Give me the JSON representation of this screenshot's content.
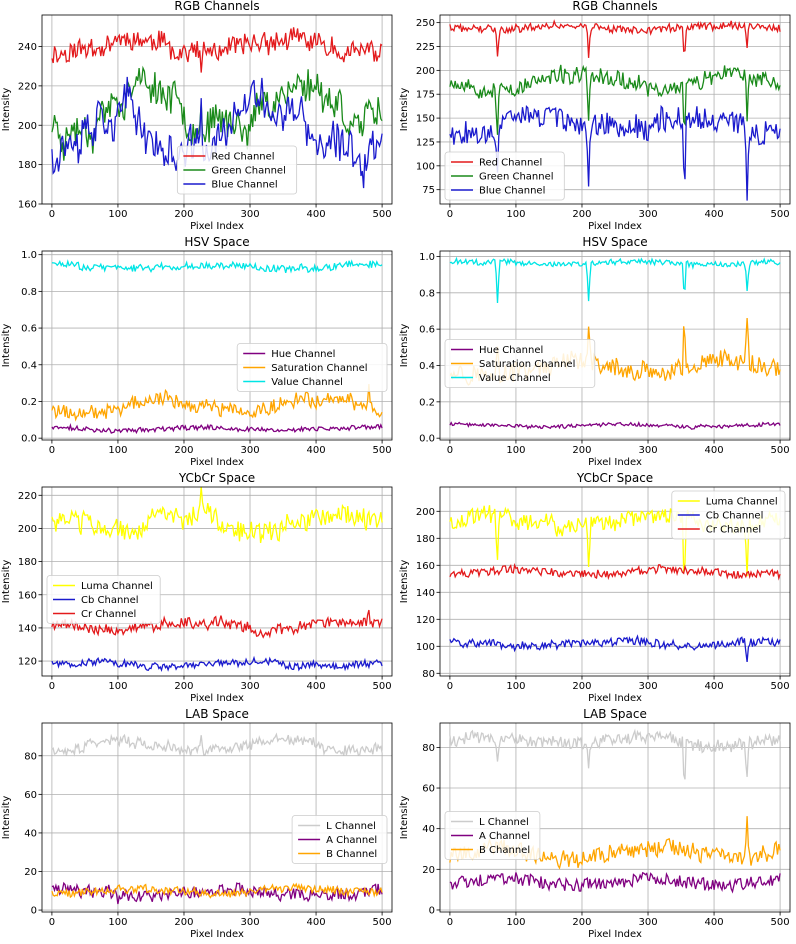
{
  "chart_data": [
    {
      "type": "line",
      "title": "RGB Channels",
      "xlabel": "Pixel Index",
      "ylabel": "Intensity",
      "xlim": [
        -15,
        515
      ],
      "ylim": [
        160,
        256
      ],
      "xticks": [
        0,
        100,
        200,
        300,
        400,
        500
      ],
      "yticks": [
        160,
        180,
        200,
        220,
        240
      ],
      "legend_position": "lower-center",
      "series": [
        {
          "name": "Red Channel",
          "color": "#e31a1c",
          "base": 240,
          "amp": 4,
          "noise": 5,
          "seed": 11,
          "spikes": [
            [
              226,
              -10
            ]
          ]
        },
        {
          "name": "Green Channel",
          "color": "#1a8a1a",
          "base": 210,
          "amp": 14,
          "noise": 7,
          "seed": 23,
          "spikes": [
            [
              226,
              18
            ]
          ]
        },
        {
          "name": "Blue Channel",
          "color": "#1a1acd",
          "base": 197,
          "amp": 17,
          "noise": 8,
          "seed": 37,
          "spikes": [
            [
              226,
              25
            ]
          ]
        }
      ]
    },
    {
      "type": "line",
      "title": "RGB Channels",
      "xlabel": "Pixel Index",
      "ylabel": "Intensity",
      "xlim": [
        -15,
        515
      ],
      "ylim": [
        60,
        258
      ],
      "xticks": [
        0,
        100,
        200,
        300,
        400,
        500
      ],
      "yticks": [
        75,
        100,
        125,
        150,
        175,
        200,
        225,
        250
      ],
      "legend_position": "lower-left",
      "series": [
        {
          "name": "Red Channel",
          "color": "#e31a1c",
          "base": 245,
          "amp": 3,
          "noise": 4,
          "seed": 41,
          "spikes": [
            [
              72,
              -30
            ],
            [
              210,
              -30
            ],
            [
              355,
              -35
            ],
            [
              450,
              -20
            ]
          ]
        },
        {
          "name": "Green Channel",
          "color": "#1a8a1a",
          "base": 188,
          "amp": 8,
          "noise": 8,
          "seed": 53,
          "spikes": [
            [
              72,
              -50
            ],
            [
              210,
              -55
            ],
            [
              355,
              -60
            ],
            [
              450,
              -45
            ]
          ]
        },
        {
          "name": "Blue Channel",
          "color": "#1a1acd",
          "base": 145,
          "amp": 10,
          "noise": 12,
          "seed": 67,
          "spikes": [
            [
              72,
              -60
            ],
            [
              210,
              -65
            ],
            [
              355,
              -80
            ],
            [
              450,
              -75
            ]
          ]
        }
      ]
    },
    {
      "type": "line",
      "title": "HSV Space",
      "xlabel": "Pixel Index",
      "ylabel": "Intensity",
      "xlim": [
        -15,
        515
      ],
      "ylim": [
        -0.01,
        1.02
      ],
      "xticks": [
        0,
        100,
        200,
        300,
        400,
        500
      ],
      "yticks": [
        0.0,
        0.2,
        0.4,
        0.6,
        0.8,
        1.0
      ],
      "legend_position": "center-right",
      "series": [
        {
          "name": "Hue Channel",
          "color": "#800080",
          "base": 0.05,
          "amp": 0.01,
          "noise": 0.012,
          "seed": 71,
          "spikes": []
        },
        {
          "name": "Saturation Channel",
          "color": "#ffa500",
          "base": 0.18,
          "amp": 0.05,
          "noise": 0.035,
          "seed": 79,
          "spikes": [
            [
              480,
              0.1
            ]
          ]
        },
        {
          "name": "Value Channel",
          "color": "#00e5e5",
          "base": 0.935,
          "amp": 0.015,
          "noise": 0.018,
          "seed": 83,
          "spikes": []
        }
      ]
    },
    {
      "type": "line",
      "title": "HSV Space",
      "xlabel": "Pixel Index",
      "ylabel": "Intensity",
      "xlim": [
        -15,
        515
      ],
      "ylim": [
        -0.01,
        1.03
      ],
      "xticks": [
        0,
        100,
        200,
        300,
        400,
        500
      ],
      "yticks": [
        0.0,
        0.2,
        0.4,
        0.6,
        0.8,
        1.0
      ],
      "legend_position": "center-left",
      "series": [
        {
          "name": "Hue Channel",
          "color": "#800080",
          "base": 0.07,
          "amp": 0.008,
          "noise": 0.01,
          "seed": 89,
          "spikes": []
        },
        {
          "name": "Saturation Channel",
          "color": "#ffa500",
          "base": 0.38,
          "amp": 0.04,
          "noise": 0.05,
          "seed": 97,
          "spikes": [
            [
              355,
              0.28
            ],
            [
              450,
              0.28
            ],
            [
              72,
              0.12
            ],
            [
              210,
              0.15
            ]
          ]
        },
        {
          "name": "Value Channel",
          "color": "#00e5e5",
          "base": 0.965,
          "amp": 0.01,
          "noise": 0.015,
          "seed": 101,
          "spikes": [
            [
              72,
              -0.23
            ],
            [
              210,
              -0.2
            ],
            [
              355,
              -0.22
            ],
            [
              450,
              -0.16
            ]
          ]
        }
      ]
    },
    {
      "type": "line",
      "title": "YCbCr Space",
      "xlabel": "Pixel Index",
      "ylabel": "Intensity",
      "xlim": [
        -15,
        515
      ],
      "ylim": [
        111,
        225
      ],
      "xticks": [
        0,
        100,
        200,
        300,
        400,
        500
      ],
      "yticks": [
        120,
        140,
        160,
        180,
        200,
        220
      ],
      "legend_position": "center-left",
      "series": [
        {
          "name": "Luma Channel",
          "color": "#ffff00",
          "base": 203,
          "amp": 7,
          "noise": 6,
          "seed": 103,
          "spikes": [
            [
              226,
              15
            ]
          ]
        },
        {
          "name": "Cb Channel",
          "color": "#1a1acd",
          "base": 118,
          "amp": 2,
          "noise": 2,
          "seed": 107,
          "spikes": []
        },
        {
          "name": "Cr Channel",
          "color": "#e31a1c",
          "base": 141,
          "amp": 3,
          "noise": 3,
          "seed": 109,
          "spikes": [
            [
              480,
              8
            ]
          ]
        }
      ]
    },
    {
      "type": "line",
      "title": "YCbCr Space",
      "xlabel": "Pixel Index",
      "ylabel": "Intensity",
      "xlim": [
        -15,
        515
      ],
      "ylim": [
        78,
        218
      ],
      "xticks": [
        0,
        100,
        200,
        300,
        400,
        500
      ],
      "yticks": [
        80,
        100,
        120,
        140,
        160,
        180,
        200
      ],
      "legend_position": "top-right",
      "series": [
        {
          "name": "Luma Channel",
          "color": "#ffff00",
          "base": 193,
          "amp": 5,
          "noise": 6,
          "seed": 113,
          "spikes": [
            [
              72,
              -30
            ],
            [
              210,
              -35
            ],
            [
              355,
              -55
            ],
            [
              450,
              -40
            ]
          ]
        },
        {
          "name": "Cb Channel",
          "color": "#1a1acd",
          "base": 102,
          "amp": 2,
          "noise": 3,
          "seed": 127,
          "spikes": [
            [
              450,
              -12
            ]
          ]
        },
        {
          "name": "Cr Channel",
          "color": "#e31a1c",
          "base": 155,
          "amp": 2,
          "noise": 3,
          "seed": 131,
          "spikes": []
        }
      ]
    },
    {
      "type": "line",
      "title": "LAB Space",
      "xlabel": "Pixel Index",
      "ylabel": "Intensity",
      "xlim": [
        -15,
        515
      ],
      "ylim": [
        -1,
        97
      ],
      "xticks": [
        0,
        100,
        200,
        300,
        400,
        500
      ],
      "yticks": [
        0,
        20,
        40,
        60,
        80
      ],
      "legend_position": "center-right",
      "series": [
        {
          "name": "L Channel",
          "color": "#cccccc",
          "base": 85,
          "amp": 3,
          "noise": 2.5,
          "seed": 137,
          "spikes": [
            [
              226,
              8
            ]
          ]
        },
        {
          "name": "A Channel",
          "color": "#800080",
          "base": 9,
          "amp": 2,
          "noise": 3,
          "seed": 139,
          "spikes": [
            [
              100,
              -7
            ]
          ]
        },
        {
          "name": "B Channel",
          "color": "#ffa500",
          "base": 10,
          "amp": 1.5,
          "noise": 2,
          "seed": 149,
          "spikes": []
        }
      ]
    },
    {
      "type": "line",
      "title": "LAB Space",
      "xlabel": "Pixel Index",
      "ylabel": "Intensity",
      "xlim": [
        -15,
        515
      ],
      "ylim": [
        -1,
        92
      ],
      "xticks": [
        0,
        100,
        200,
        300,
        400,
        500
      ],
      "yticks": [
        0,
        20,
        40,
        60,
        80
      ],
      "legend_position": "center-left",
      "series": [
        {
          "name": "L Channel",
          "color": "#cccccc",
          "base": 83,
          "amp": 2,
          "noise": 3,
          "seed": 151,
          "spikes": [
            [
              72,
              -12
            ],
            [
              210,
              -14
            ],
            [
              355,
              -22
            ],
            [
              450,
              -18
            ]
          ]
        },
        {
          "name": "A Channel",
          "color": "#800080",
          "base": 14,
          "amp": 2,
          "noise": 3,
          "seed": 157,
          "spikes": []
        },
        {
          "name": "B Channel",
          "color": "#ffa500",
          "base": 28,
          "amp": 3,
          "noise": 4,
          "seed": 163,
          "spikes": [
            [
              450,
              18
            ]
          ]
        }
      ]
    }
  ]
}
